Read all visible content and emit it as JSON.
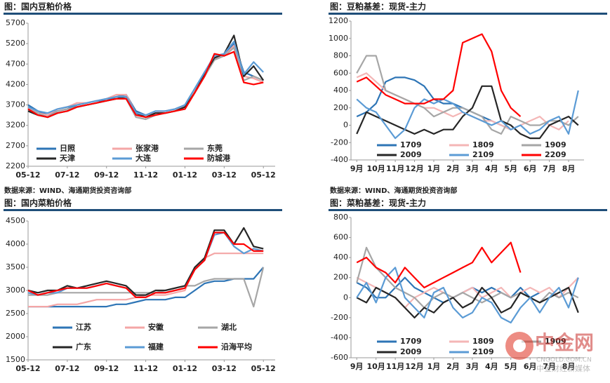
{
  "sources": [
    "数据来源：WIND、海通期货投资咨询部",
    "数据来源：WIND、海通期货投资咨询部"
  ],
  "watermark": {
    "name": "中金网",
    "site": "CNGOLD.COM.CN",
    "slogan": "中金财经新媒体"
  },
  "chart_data": [
    {
      "type": "line",
      "title": "图：国内豆粕价格",
      "x": [
        0,
        0.5,
        1,
        1.5,
        2,
        2.5,
        3,
        3.5,
        4,
        4.5,
        5,
        5.5,
        6,
        6.5,
        7,
        7.5,
        8,
        8.5,
        9,
        9.5,
        10,
        10.5,
        11,
        11.5,
        12
      ],
      "xlim": [
        0,
        12.6
      ],
      "xticks": [
        {
          "value": 0,
          "label": "05-12"
        },
        {
          "value": 2,
          "label": "07-12"
        },
        {
          "value": 4,
          "label": "09-12"
        },
        {
          "value": 6,
          "label": "11-12"
        },
        {
          "value": 8,
          "label": "01-12"
        },
        {
          "value": 10,
          "label": "03-12"
        },
        {
          "value": 12,
          "label": "05-12"
        }
      ],
      "ylim": [
        2200,
        5700
      ],
      "yticks": [
        2200,
        2700,
        3200,
        3700,
        4200,
        4700,
        5200,
        5700
      ],
      "grid": false,
      "series": [
        {
          "name": "日照",
          "color": "#2e75b6",
          "values": [
            3700,
            3550,
            3450,
            3550,
            3600,
            3700,
            3750,
            3800,
            3800,
            3900,
            3950,
            3550,
            3450,
            3500,
            3550,
            3600,
            3700,
            4100,
            4500,
            4800,
            4950,
            5200,
            4500,
            4400,
            4300
          ]
        },
        {
          "name": "张家港",
          "color": "#f4a6a6",
          "values": [
            3650,
            3500,
            3450,
            3600,
            3650,
            3750,
            3750,
            3800,
            3850,
            3950,
            3950,
            3500,
            3450,
            3500,
            3550,
            3600,
            3650,
            4050,
            4450,
            4850,
            4900,
            5150,
            4400,
            4350,
            4250
          ]
        },
        {
          "name": "东莞",
          "color": "#a6a6a6",
          "values": [
            3600,
            3500,
            3400,
            3550,
            3600,
            3650,
            3700,
            3750,
            3800,
            3850,
            3850,
            3400,
            3350,
            3450,
            3500,
            3550,
            3600,
            4000,
            4400,
            4800,
            4900,
            5100,
            4300,
            4400,
            4300
          ]
        },
        {
          "name": "天津",
          "color": "#262626",
          "values": [
            3550,
            3450,
            3400,
            3500,
            3550,
            3650,
            3700,
            3750,
            3800,
            3850,
            3900,
            3500,
            3400,
            3500,
            3500,
            3550,
            3650,
            4000,
            4450,
            4850,
            4950,
            5400,
            4400,
            4650,
            4300
          ]
        },
        {
          "name": "大连",
          "color": "#5b9bd5",
          "values": [
            3650,
            3550,
            3500,
            3600,
            3650,
            3700,
            3750,
            3800,
            3850,
            3900,
            3900,
            3500,
            3450,
            3550,
            3550,
            3600,
            3700,
            4100,
            4500,
            4900,
            4950,
            5250,
            4450,
            4750,
            4500
          ]
        },
        {
          "name": "防城港",
          "color": "#ff0000",
          "values": [
            3600,
            3450,
            3400,
            3500,
            3550,
            3650,
            3700,
            3750,
            3800,
            3850,
            3850,
            3450,
            3400,
            3450,
            3500,
            3550,
            3600,
            4000,
            4400,
            4950,
            4900,
            5000,
            4250,
            4200,
            4250
          ]
        }
      ]
    },
    {
      "type": "line",
      "title": "图：豆粕基差：现货-主力",
      "x": [
        0,
        0.5,
        1,
        1.5,
        2,
        2.5,
        3,
        3.5,
        4,
        4.5,
        5,
        5.5,
        6,
        6.5,
        7,
        7.5,
        8,
        8.5,
        9,
        9.5,
        10,
        10.5,
        11,
        11.5
      ],
      "xlim": [
        -0.3,
        11.8
      ],
      "xticks": [
        {
          "value": 0,
          "label": "9月"
        },
        {
          "value": 1,
          "label": "10月"
        },
        {
          "value": 2,
          "label": "11月"
        },
        {
          "value": 3,
          "label": "12月"
        },
        {
          "value": 4,
          "label": "1月"
        },
        {
          "value": 5,
          "label": "2月"
        },
        {
          "value": 6,
          "label": "3月"
        },
        {
          "value": 7,
          "label": "4月"
        },
        {
          "value": 8,
          "label": "5月"
        },
        {
          "value": 9,
          "label": "6月"
        },
        {
          "value": 10,
          "label": "7月"
        },
        {
          "value": 11,
          "label": "8月"
        }
      ],
      "ylim": [
        -400,
        1200
      ],
      "yticks": [
        -400,
        -200,
        0,
        200,
        400,
        600,
        800,
        1000,
        1200
      ],
      "grid": false,
      "series": [
        {
          "name": "1709",
          "color": "#2e75b6",
          "values": [
            100,
            150,
            250,
            500,
            550,
            550,
            520,
            450,
            300,
            250,
            250,
            200,
            150,
            100,
            50,
            0,
            -50,
            null,
            null,
            null,
            null,
            null,
            null,
            null
          ]
        },
        {
          "name": "1809",
          "color": "#f4b6b6",
          "values": [
            550,
            600,
            500,
            400,
            350,
            300,
            250,
            200,
            200,
            150,
            100,
            150,
            100,
            50,
            50,
            0,
            -50,
            0,
            50,
            100,
            0,
            -50,
            50,
            null
          ]
        },
        {
          "name": "1909",
          "color": "#a6a6a6",
          "values": [
            600,
            800,
            800,
            400,
            350,
            300,
            250,
            200,
            100,
            150,
            200,
            200,
            150,
            100,
            -50,
            -100,
            100,
            50,
            0,
            0,
            50,
            50,
            0,
            100
          ]
        },
        {
          "name": "2009",
          "color": "#262626",
          "values": [
            -100,
            150,
            100,
            50,
            0,
            -50,
            -100,
            -50,
            -100,
            -50,
            -50,
            100,
            200,
            450,
            450,
            50,
            0,
            -100,
            -150,
            -150,
            0,
            50,
            100,
            0
          ]
        },
        {
          "name": "2109",
          "color": "#5b9bd5",
          "values": [
            300,
            200,
            150,
            0,
            -150,
            -50,
            200,
            300,
            250,
            300,
            250,
            150,
            100,
            50,
            0,
            50,
            -50,
            0,
            -100,
            -50,
            50,
            100,
            -100,
            400
          ]
        },
        {
          "name": "2209",
          "color": "#ff0000",
          "values": [
            500,
            550,
            450,
            350,
            300,
            250,
            250,
            250,
            300,
            300,
            400,
            950,
            1000,
            1050,
            850,
            400,
            200,
            100,
            null,
            null,
            null,
            null,
            null,
            null
          ]
        }
      ]
    },
    {
      "type": "line",
      "title": "图：国内菜粕价格",
      "x": [
        0,
        0.5,
        1,
        1.5,
        2,
        2.5,
        3,
        3.5,
        4,
        4.5,
        5,
        5.5,
        6,
        6.5,
        7,
        7.5,
        8,
        8.5,
        9,
        9.5,
        10,
        10.5,
        11,
        11.5,
        12
      ],
      "xlim": [
        0,
        12.6
      ],
      "xticks": [
        {
          "value": 0,
          "label": "05-12"
        },
        {
          "value": 2,
          "label": "07-12"
        },
        {
          "value": 4,
          "label": "09-12"
        },
        {
          "value": 6,
          "label": "11-12"
        },
        {
          "value": 8,
          "label": "01-12"
        },
        {
          "value": 10,
          "label": "03-12"
        },
        {
          "value": 12,
          "label": "05-12"
        }
      ],
      "ylim": [
        1500,
        4500
      ],
      "yticks": [
        1500,
        2000,
        2500,
        3000,
        3500,
        4000,
        4500
      ],
      "grid": false,
      "series": [
        {
          "name": "江苏",
          "color": "#2e75b6",
          "values": [
            2650,
            2650,
            2650,
            2650,
            2650,
            2650,
            2650,
            2650,
            2650,
            2700,
            2700,
            2750,
            2800,
            2800,
            2800,
            2850,
            2850,
            3000,
            3150,
            3200,
            3200,
            3250,
            3250,
            3250,
            3500
          ]
        },
        {
          "name": "安徽",
          "color": "#f4a6a6",
          "values": [
            2650,
            2650,
            2650,
            2700,
            2700,
            2700,
            2750,
            2800,
            2800,
            2800,
            2800,
            2850,
            2900,
            2900,
            2900,
            2950,
            3000,
            3500,
            3700,
            3800,
            3800,
            3800,
            3800,
            3800,
            3800
          ]
        },
        {
          "name": "湖北",
          "color": "#a6a6a6",
          "values": [
            2900,
            2900,
            2900,
            2950,
            2950,
            2950,
            2950,
            2950,
            2950,
            2950,
            2950,
            2950,
            2950,
            2950,
            3000,
            3050,
            3100,
            3100,
            3200,
            3250,
            3250,
            3250,
            3250,
            2650,
            3500
          ]
        },
        {
          "name": "广东",
          "color": "#262626",
          "values": [
            3000,
            2950,
            3000,
            3000,
            3100,
            3050,
            3100,
            3150,
            3200,
            3150,
            3100,
            2900,
            2900,
            3000,
            3000,
            3050,
            3100,
            3500,
            3700,
            4300,
            4300,
            4000,
            4350,
            3950,
            3900
          ]
        },
        {
          "name": "福建",
          "color": "#5b9bd5",
          "values": [
            2950,
            2900,
            2950,
            2950,
            3050,
            3050,
            3050,
            3100,
            3150,
            3100,
            3050,
            2850,
            2850,
            2950,
            2950,
            3000,
            3050,
            3450,
            3650,
            4200,
            4250,
            3950,
            3800,
            3900,
            3850
          ]
        },
        {
          "name": "沿海平均",
          "color": "#ff0000",
          "values": [
            3000,
            2900,
            2950,
            3000,
            3050,
            3050,
            3050,
            3100,
            3150,
            3100,
            3050,
            2850,
            2850,
            2950,
            2950,
            3000,
            3050,
            3450,
            3650,
            4250,
            4250,
            4000,
            4000,
            3850,
            3850
          ]
        }
      ]
    },
    {
      "type": "line",
      "title": "图：菜粕基差：现货-主力",
      "x": [
        0,
        0.5,
        1,
        1.5,
        2,
        2.5,
        3,
        3.5,
        4,
        4.5,
        5,
        5.5,
        6,
        6.5,
        7,
        7.5,
        8,
        8.5,
        9,
        9.5,
        10,
        10.5,
        11,
        11.5
      ],
      "xlim": [
        -0.3,
        11.8
      ],
      "xticks": [
        {
          "value": 0,
          "label": "9月"
        },
        {
          "value": 1,
          "label": "10月"
        },
        {
          "value": 2,
          "label": "11月"
        },
        {
          "value": 3,
          "label": "12月"
        },
        {
          "value": 4,
          "label": "1月"
        },
        {
          "value": 5,
          "label": "2月"
        },
        {
          "value": 6,
          "label": "3月"
        },
        {
          "value": 7,
          "label": "4月"
        },
        {
          "value": 8,
          "label": "5月"
        },
        {
          "value": 9,
          "label": "6月"
        },
        {
          "value": 10,
          "label": "7月"
        },
        {
          "value": 11,
          "label": "8月"
        }
      ],
      "ylim": [
        -600,
        800
      ],
      "yticks": [
        -600,
        -400,
        -200,
        0,
        200,
        400,
        600,
        800
      ],
      "grid": false,
      "series": [
        {
          "name": "1709",
          "color": "#2e75b6",
          "values": [
            150,
            100,
            0,
            0,
            100,
            200,
            100,
            50,
            0,
            -50,
            0,
            50,
            100,
            50,
            100,
            50,
            0,
            100,
            0,
            50,
            null,
            null,
            null,
            null
          ]
        },
        {
          "name": "1809",
          "color": "#f4b6b6",
          "values": [
            200,
            150,
            100,
            50,
            0,
            -100,
            0,
            50,
            100,
            50,
            0,
            50,
            100,
            0,
            50,
            100,
            0,
            50,
            100,
            50,
            100,
            0,
            100,
            200
          ]
        },
        {
          "name": "1909",
          "color": "#a6a6a6",
          "values": [
            150,
            500,
            300,
            200,
            100,
            50,
            0,
            -100,
            0,
            50,
            0,
            50,
            0,
            -50,
            0,
            50,
            0,
            50,
            0,
            -50,
            50,
            0,
            50,
            0
          ]
        },
        {
          "name": "2009",
          "color": "#262626",
          "values": [
            0,
            -50,
            100,
            50,
            0,
            -100,
            -200,
            -100,
            -150,
            -50,
            0,
            -100,
            -50,
            100,
            0,
            -150,
            -100,
            50,
            0,
            -50,
            0,
            50,
            100,
            -150
          ]
        },
        {
          "name": "2109",
          "color": "#5b9bd5",
          "values": [
            0,
            150,
            -50,
            200,
            300,
            0,
            -100,
            -200,
            50,
            100,
            -100,
            -200,
            -150,
            0,
            -50,
            -200,
            -250,
            -100,
            0,
            -150,
            0,
            100,
            -100,
            200
          ]
        },
        {
          "color": "#ff0000",
          "values": [
            350,
            400,
            300,
            250,
            150,
            300,
            200,
            100,
            150,
            200,
            250,
            300,
            350,
            500,
            350,
            450,
            550,
            250,
            null,
            null,
            null,
            null,
            null,
            null
          ]
        }
      ]
    }
  ]
}
